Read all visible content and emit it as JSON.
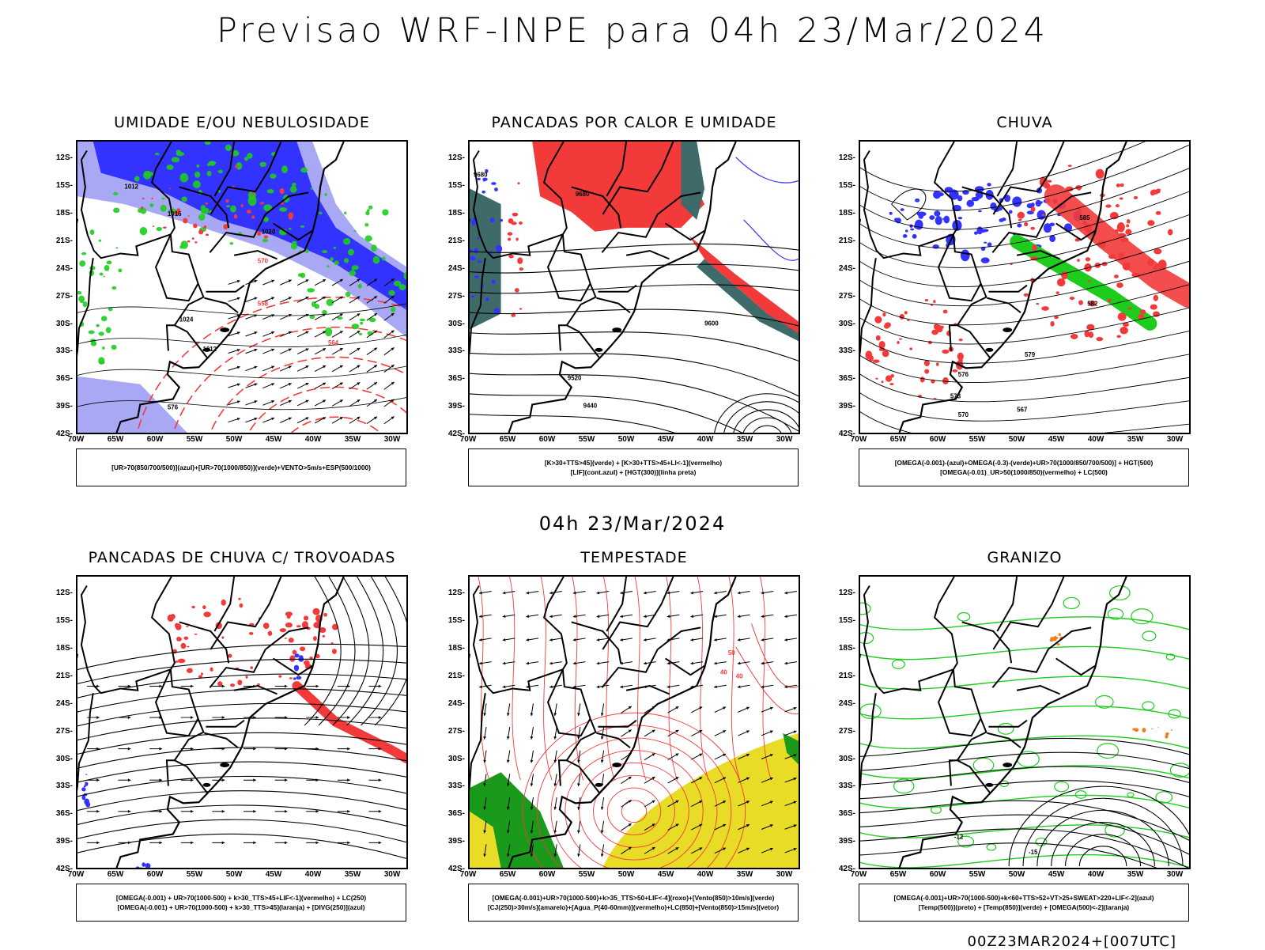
{
  "header": {
    "title": "Previsao WRF-INPE  para 04h 23/Mar/2024"
  },
  "mid_date": "04h 23/Mar/2024",
  "footer": "00Z23MAR2024+[007UTC]",
  "axes": {
    "lat_labels": [
      "12S",
      "15S",
      "18S",
      "21S",
      "24S",
      "27S",
      "30S",
      "33S",
      "36S",
      "39S",
      "42S"
    ],
    "lon_labels": [
      "70W",
      "65W",
      "60W",
      "55W",
      "50W",
      "45W",
      "40W",
      "35W",
      "30W"
    ]
  },
  "colors": {
    "blue": "#3333ff",
    "light_blue": "#a8a8f5",
    "green": "#1ecc1e",
    "red": "#f23a3a",
    "teal": "#3e6a6a",
    "yellow": "#e8dc26",
    "dark_green": "#1a9a1a",
    "orange": "#f07f1e"
  },
  "panels": [
    {
      "title": "UMIDADE E/OU NEBULOSIDADE",
      "legend": [
        "[UR>70(850/700/500)](azul)+[UR>70(1000/850)](verde)+VENTO>5m/s+ESP(500/1000)"
      ],
      "contour_labels": [
        "1012",
        "1016",
        "1020",
        "1024",
        "1012",
        "576",
        "570",
        "564",
        "558"
      ]
    },
    {
      "title": "PANCADAS POR CALOR E UMIDADE",
      "legend": [
        "[K>30+TTS>45](verde) + [K>30+TTS>45+LI<-1](vermelho)",
        "[LIF](cont.azul) + [HGT(300)](linha preta)"
      ],
      "contour_labels": [
        "9680",
        "9680",
        "9600",
        "9520",
        "9440"
      ]
    },
    {
      "title": "CHUVA",
      "legend": [
        "[OMEGA(-0.001)-(azul)+OMEGA(-0.3)-(verde)+UR>70(1000/850/700/500)] + HGT(500)",
        "[OMEGA(-0.01)_UR>50(1000/850)(vermelho) + LC(500)"
      ],
      "contour_labels": [
        "585",
        "582",
        "579",
        "576",
        "573",
        "570",
        "567"
      ]
    },
    {
      "title": "PANCADAS DE CHUVA C/ TROVOADAS",
      "legend": [
        "[OMEGA(-0.001) + UR>70(1000-500) + k>30_TTS>45+LIF<-1](vermelho) + LC(250)",
        "[OMEGA(-0.001) + UR>70(1000-500) + k>30_TTS>45](laranja) + [DIVG(250)](azul)"
      ],
      "contour_labels": []
    },
    {
      "title": "TEMPESTADE",
      "legend": [
        "[OMEGA(-0.001)+UR>70(1000-500)+k>35_TTS>50+LIF<-4](roxo)+[Vento(850)>10m/s](verde)",
        "[CJ(250)>30m/s](amarelo)+[Agua_P(40-60mm)](vermelho)+LC(850)+[Vento(850)>15m/s](vetor)"
      ],
      "contour_labels": [
        "40",
        "40",
        "50"
      ]
    },
    {
      "title": "GRANIZO",
      "legend": [
        "[OMEGA(-0.001)+UR>70(1000-500)+k<60+TTS>52+VT>25+SWEAT>220+LIF<-2](azul)",
        "[Temp(500)](preto) + [Temp(850)](verde) + [OMEGA(500)<-2](laranja)"
      ],
      "contour_labels": [
        "-12",
        "-15"
      ]
    }
  ]
}
